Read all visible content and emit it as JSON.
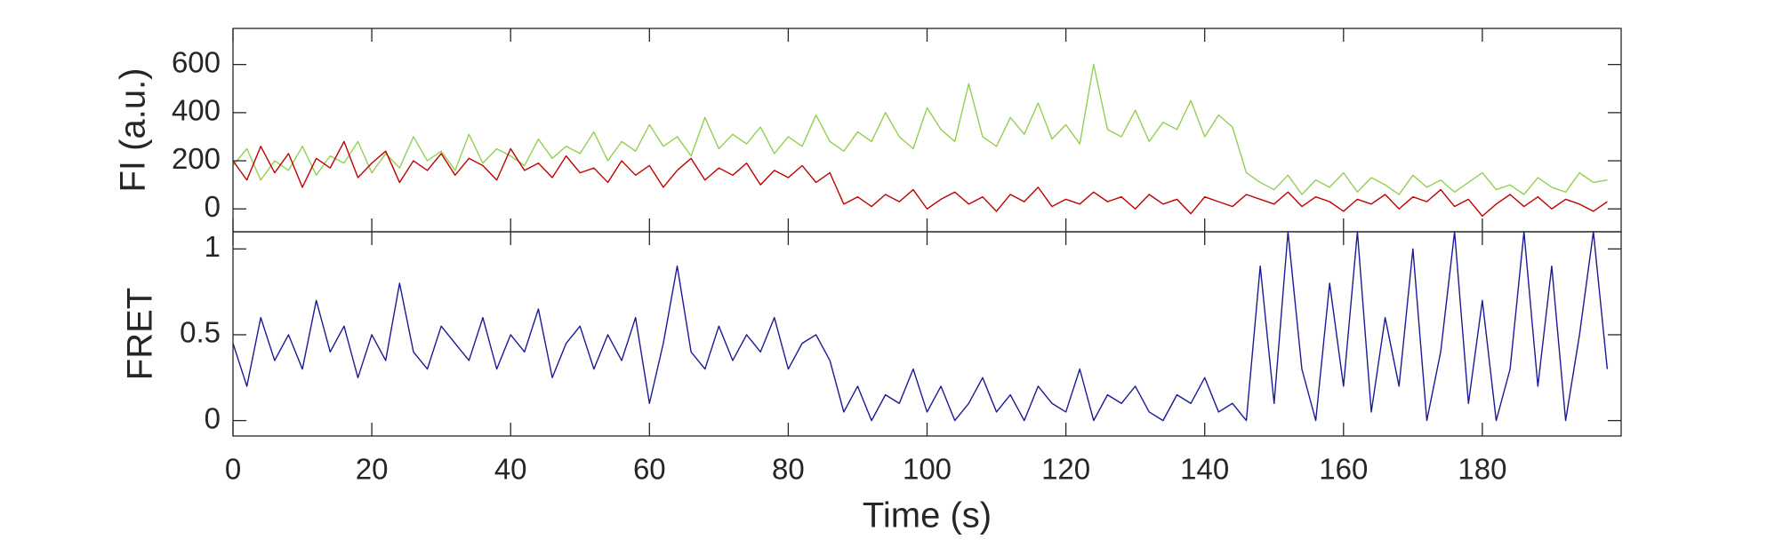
{
  "chart_data": [
    {
      "type": "line",
      "ylabel": "FI (a.u.)",
      "x": [
        0,
        2,
        4,
        6,
        8,
        10,
        12,
        14,
        16,
        18,
        20,
        22,
        24,
        26,
        28,
        30,
        32,
        34,
        36,
        38,
        40,
        42,
        44,
        46,
        48,
        50,
        52,
        54,
        56,
        58,
        60,
        62,
        64,
        66,
        68,
        70,
        72,
        74,
        76,
        78,
        80,
        82,
        84,
        86,
        88,
        90,
        92,
        94,
        96,
        98,
        100,
        102,
        104,
        106,
        108,
        110,
        112,
        114,
        116,
        118,
        120,
        122,
        124,
        126,
        128,
        130,
        132,
        134,
        136,
        138,
        140,
        142,
        144,
        146,
        148,
        150,
        152,
        154,
        156,
        158,
        160,
        162,
        164,
        166,
        168,
        170,
        172,
        174,
        176,
        178,
        180,
        182,
        184,
        186,
        188,
        190,
        192,
        194,
        196,
        198
      ],
      "series": [
        {
          "color": "#92d050",
          "values": [
            180,
            250,
            120,
            200,
            160,
            260,
            140,
            220,
            190,
            280,
            150,
            230,
            170,
            300,
            200,
            240,
            160,
            310,
            190,
            250,
            220,
            180,
            290,
            210,
            260,
            230,
            320,
            200,
            280,
            240,
            350,
            260,
            300,
            220,
            380,
            250,
            310,
            270,
            340,
            230,
            300,
            260,
            390,
            280,
            240,
            320,
            280,
            400,
            300,
            250,
            420,
            330,
            280,
            520,
            300,
            260,
            380,
            310,
            440,
            290,
            350,
            270,
            600,
            330,
            300,
            410,
            280,
            360,
            330,
            450,
            300,
            390,
            340,
            150,
            110,
            80,
            140,
            60,
            120,
            90,
            150,
            70,
            130,
            100,
            60,
            140,
            90,
            120,
            70,
            110,
            150,
            80,
            100,
            60,
            130,
            90,
            70,
            150,
            110,
            120
          ]
        },
        {
          "color": "#c00000",
          "values": [
            200,
            120,
            260,
            150,
            230,
            90,
            210,
            170,
            280,
            130,
            190,
            240,
            110,
            200,
            160,
            230,
            140,
            210,
            180,
            120,
            250,
            160,
            190,
            130,
            220,
            150,
            170,
            110,
            200,
            140,
            180,
            90,
            160,
            210,
            120,
            170,
            140,
            190,
            100,
            160,
            130,
            180,
            110,
            150,
            20,
            50,
            10,
            60,
            30,
            80,
            0,
            40,
            70,
            20,
            50,
            -10,
            60,
            30,
            90,
            10,
            40,
            20,
            70,
            30,
            50,
            0,
            60,
            20,
            40,
            -20,
            50,
            30,
            10,
            60,
            40,
            20,
            70,
            10,
            50,
            30,
            -10,
            40,
            20,
            60,
            0,
            50,
            30,
            80,
            10,
            40,
            -30,
            20,
            60,
            10,
            50,
            0,
            40,
            20,
            -10,
            30
          ]
        }
      ],
      "xlim": [
        0,
        200
      ],
      "xticks": [
        0,
        20,
        40,
        60,
        80,
        100,
        120,
        140,
        160,
        180
      ],
      "ylim": [
        -95,
        750
      ],
      "yticks": [
        0,
        200,
        400,
        600
      ]
    },
    {
      "type": "line",
      "ylabel": "FRET",
      "xlabel": "Time (s)",
      "x": [
        0,
        2,
        4,
        6,
        8,
        10,
        12,
        14,
        16,
        18,
        20,
        22,
        24,
        26,
        28,
        30,
        32,
        34,
        36,
        38,
        40,
        42,
        44,
        46,
        48,
        50,
        52,
        54,
        56,
        58,
        60,
        62,
        64,
        66,
        68,
        70,
        72,
        74,
        76,
        78,
        80,
        82,
        84,
        86,
        88,
        90,
        92,
        94,
        96,
        98,
        100,
        102,
        104,
        106,
        108,
        110,
        112,
        114,
        116,
        118,
        120,
        122,
        124,
        126,
        128,
        130,
        132,
        134,
        136,
        138,
        140,
        142,
        144,
        146,
        148,
        150,
        152,
        154,
        156,
        158,
        160,
        162,
        164,
        166,
        168,
        170,
        172,
        174,
        176,
        178,
        180,
        182,
        184,
        186,
        188,
        190,
        192,
        194,
        196,
        198
      ],
      "series": [
        {
          "color": "#1a1a96",
          "values": [
            0.45,
            0.2,
            0.6,
            0.35,
            0.5,
            0.3,
            0.7,
            0.4,
            0.55,
            0.25,
            0.5,
            0.35,
            0.8,
            0.4,
            0.3,
            0.55,
            0.45,
            0.35,
            0.6,
            0.3,
            0.5,
            0.4,
            0.65,
            0.25,
            0.45,
            0.55,
            0.3,
            0.5,
            0.35,
            0.6,
            0.1,
            0.45,
            0.9,
            0.4,
            0.3,
            0.55,
            0.35,
            0.5,
            0.4,
            0.6,
            0.3,
            0.45,
            0.5,
            0.35,
            0.05,
            0.2,
            0,
            0.15,
            0.1,
            0.3,
            0.05,
            0.2,
            0,
            0.1,
            0.25,
            0.05,
            0.15,
            0,
            0.2,
            0.1,
            0.05,
            0.3,
            0,
            0.15,
            0.1,
            0.2,
            0.05,
            0,
            0.15,
            0.1,
            0.25,
            0.05,
            0.1,
            0,
            0.9,
            0.1,
            1.1,
            0.3,
            0,
            0.8,
            0.2,
            1.1,
            0.05,
            0.6,
            0.2,
            1.0,
            0,
            0.4,
            1.1,
            0.1,
            0.7,
            0,
            0.3,
            1.1,
            0.2,
            0.9,
            0,
            0.5,
            1.1,
            0.3
          ]
        }
      ],
      "xlim": [
        0,
        200
      ],
      "xticks": [
        0,
        20,
        40,
        60,
        80,
        100,
        120,
        140,
        160,
        180
      ],
      "ylim": [
        -0.09,
        1.1
      ],
      "yticks": [
        0,
        0.5,
        1
      ]
    }
  ]
}
